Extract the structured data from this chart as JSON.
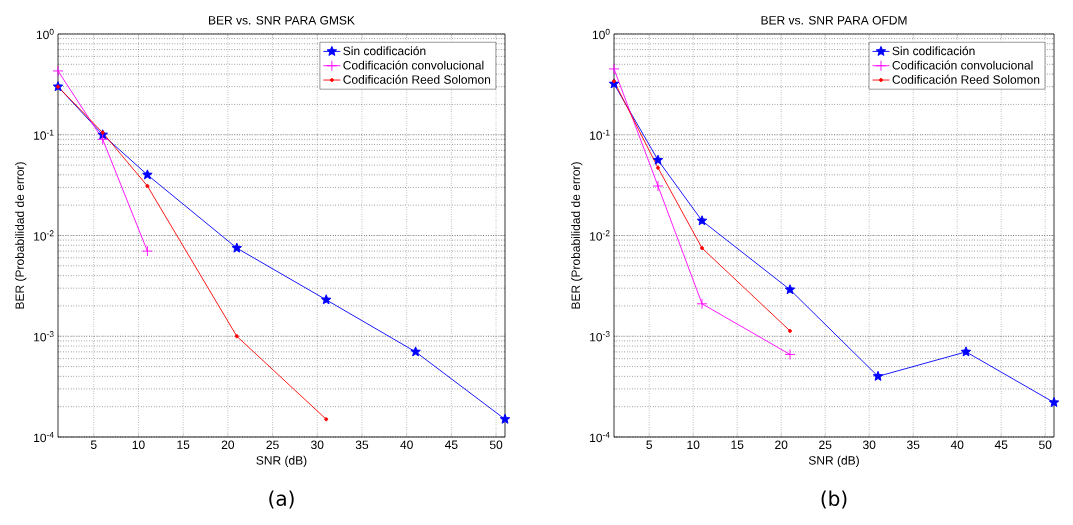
{
  "chart_data": [
    {
      "type": "line",
      "title": "BER vs. SNR PARA GMSK",
      "xlabel": "SNR (dB)",
      "ylabel": "BER (Probabilidad de error)",
      "annotations": [
        "(a)"
      ],
      "log": "y",
      "grid": true,
      "legend": "top right",
      "xlim": [
        1,
        51
      ],
      "xticks": [
        5,
        10,
        15,
        20,
        25,
        30,
        35,
        40,
        45,
        50
      ],
      "ylim": [
        0.0001,
        1
      ],
      "yticks": [
        {
          "value": 0.0001,
          "label": "10$^{-4}$"
        },
        {
          "value": 0.001,
          "label": "10$^{-3}$"
        },
        {
          "value": 0.01,
          "label": "10$^{-2}$"
        },
        {
          "value": 0.1,
          "label": "10$^{-1}$"
        },
        {
          "value": 1,
          "label": "10$^{0}$"
        }
      ],
      "series": [
        {
          "name": "Sin codificación",
          "color": "#0000ff",
          "marker": "star",
          "x": [
            1,
            6,
            11,
            21,
            31,
            41,
            51
          ],
          "values": [
            0.3,
            0.1,
            0.04,
            0.0075,
            0.0023,
            0.0007,
            0.00015
          ]
        },
        {
          "name": "Codificación convolucional",
          "color": "#ff00ff",
          "marker": "cross",
          "x": [
            1,
            6,
            11
          ],
          "values": [
            0.43,
            0.09,
            0.007
          ]
        },
        {
          "name": "Codificación Reed Solomon",
          "color": "#ff0000",
          "marker": "circle",
          "x": [
            1,
            6,
            11,
            21,
            31
          ],
          "values": [
            0.3,
            0.105,
            0.031,
            0.001,
            0.00015
          ]
        }
      ]
    },
    {
      "type": "line",
      "title": "BER vs. SNR PARA OFDM",
      "xlabel": "SNR (dB)",
      "ylabel": "BER (Probabilidad de error)",
      "annotations": [
        "(b)"
      ],
      "log": "y",
      "grid": true,
      "legend": "top right",
      "xlim": [
        1,
        51
      ],
      "xticks": [
        5,
        10,
        15,
        20,
        25,
        30,
        35,
        40,
        45,
        50
      ],
      "ylim": [
        0.0001,
        1
      ],
      "yticks": [
        {
          "value": 0.0001,
          "label": "10$^{-4}$"
        },
        {
          "value": 0.001,
          "label": "10$^{-3}$"
        },
        {
          "value": 0.01,
          "label": "10$^{-2}$"
        },
        {
          "value": 0.1,
          "label": "10$^{-1}$"
        },
        {
          "value": 1,
          "label": "10$^{0}$"
        }
      ],
      "series": [
        {
          "name": "Sin codificación",
          "color": "#0000ff",
          "marker": "star",
          "x": [
            1,
            6,
            11,
            21,
            31,
            41,
            51
          ],
          "values": [
            0.32,
            0.056,
            0.014,
            0.0029,
            0.0004,
            0.0007,
            0.00022
          ]
        },
        {
          "name": "Codificación convolucional",
          "color": "#ff00ff",
          "marker": "cross",
          "x": [
            1,
            6,
            11,
            21
          ],
          "values": [
            0.45,
            0.031,
            0.0021,
            0.00066
          ]
        },
        {
          "name": "Codificación Reed Solomon",
          "color": "#ff0000",
          "marker": "circle",
          "x": [
            1,
            6,
            11,
            21
          ],
          "values": [
            0.34,
            0.047,
            0.0075,
            0.00113
          ]
        }
      ]
    }
  ]
}
